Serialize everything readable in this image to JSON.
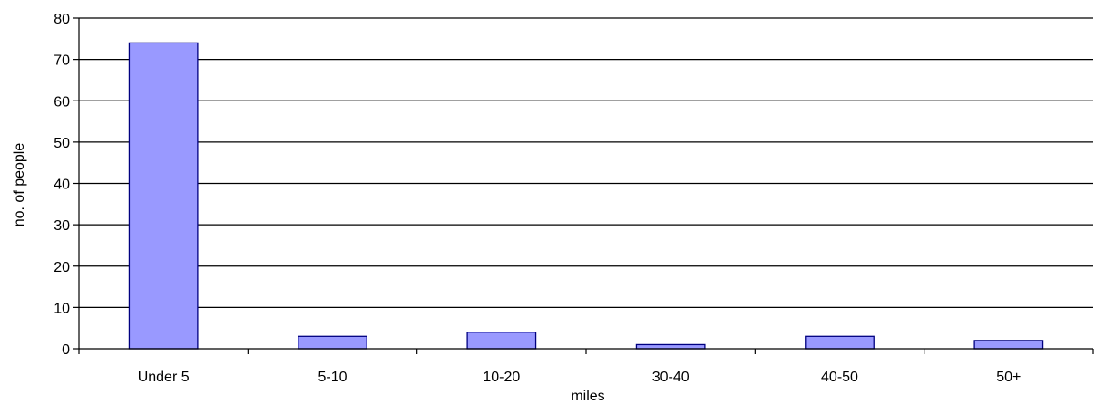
{
  "chart_data": {
    "type": "bar",
    "title": "",
    "xlabel": "miles",
    "ylabel": "no. of people",
    "categories": [
      "Under 5",
      "5-10",
      "10-20",
      "30-40",
      "40-50",
      "50+"
    ],
    "values": [
      74,
      3,
      4,
      1,
      3,
      2
    ],
    "ylim": [
      0,
      80
    ],
    "yticks": [
      0,
      10,
      20,
      30,
      40,
      50,
      60,
      70,
      80
    ],
    "grid": true,
    "legend": "none",
    "bar_color": "#9999ff",
    "bar_edge_color": "#000080",
    "gridline_color": "#000000"
  }
}
